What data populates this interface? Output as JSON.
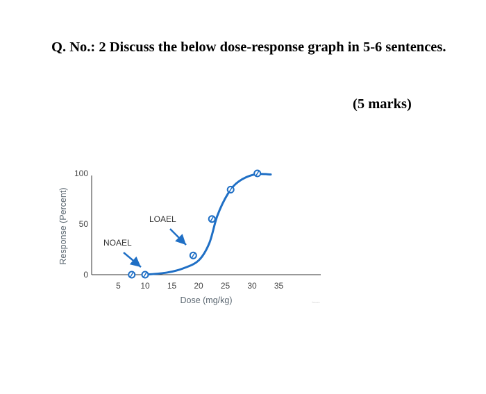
{
  "question": {
    "text": "Q. No.: 2 Discuss the below dose-response graph in 5-6 sentences.",
    "marks": "(5 marks)"
  },
  "colors": {
    "curve": "#1f6fc5",
    "axis": "#333333",
    "arrow": "#1f6fc5"
  },
  "chart_data": {
    "type": "line",
    "title": "",
    "xlabel": "Dose (mg/kg)",
    "ylabel": "Response (Percent)",
    "xlim": [
      0,
      40
    ],
    "ylim": [
      0,
      100
    ],
    "x_ticks": [
      5,
      10,
      15,
      20,
      25,
      30,
      35
    ],
    "y_ticks": [
      0,
      50,
      100
    ],
    "grid": false,
    "series": [
      {
        "type": "line",
        "points": [
          {
            "x": 10,
            "y": 0
          },
          {
            "x": 14,
            "y": 2
          },
          {
            "x": 17,
            "y": 6
          },
          {
            "x": 20,
            "y": 14
          },
          {
            "x": 22,
            "y": 31
          },
          {
            "x": 23.5,
            "y": 58
          },
          {
            "x": 25.5,
            "y": 80
          },
          {
            "x": 27.5,
            "y": 92
          },
          {
            "x": 30.5,
            "y": 99
          },
          {
            "x": 33.5,
            "y": 99
          }
        ]
      },
      {
        "type": "scatter",
        "markers": [
          {
            "x": 7.5,
            "y": 0
          },
          {
            "x": 10,
            "y": 0
          },
          {
            "x": 19,
            "y": 19
          },
          {
            "x": 22.5,
            "y": 55
          },
          {
            "x": 26,
            "y": 84
          },
          {
            "x": 31,
            "y": 100
          }
        ]
      }
    ],
    "annotations": [
      {
        "label": "NOAEL",
        "points_to": {
          "x": 10,
          "y": 0
        }
      },
      {
        "label": "LOAEL",
        "points_to": {
          "x": 19,
          "y": 19
        }
      }
    ],
    "credit": "©eLearn"
  }
}
